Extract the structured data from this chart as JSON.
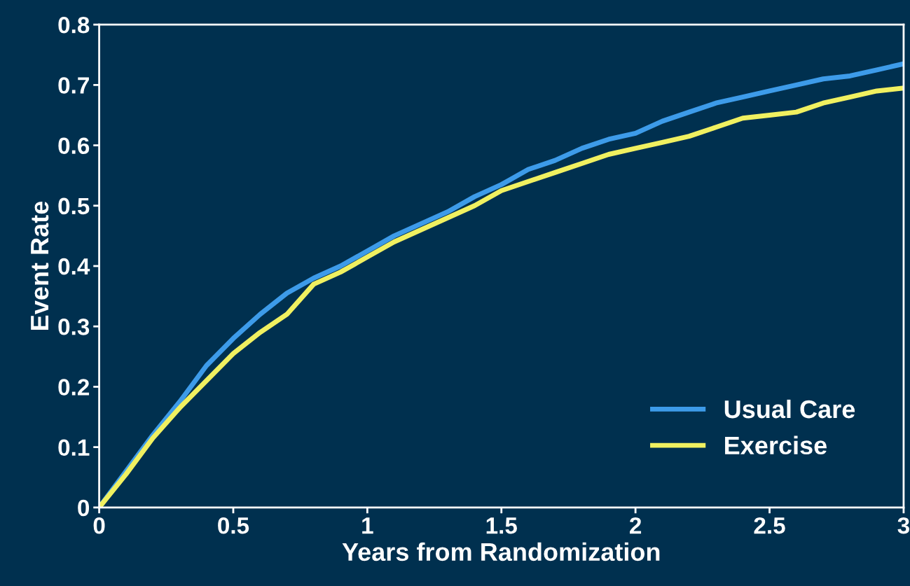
{
  "chart_data": {
    "type": "line",
    "xlabel": "Years from Randomization",
    "ylabel": "Event Rate",
    "x": [
      0,
      0.1,
      0.2,
      0.3,
      0.4,
      0.5,
      0.6,
      0.7,
      0.8,
      0.9,
      1.0,
      1.1,
      1.2,
      1.3,
      1.4,
      1.5,
      1.6,
      1.7,
      1.8,
      1.9,
      2.0,
      2.1,
      2.2,
      2.3,
      2.4,
      2.5,
      2.6,
      2.7,
      2.8,
      2.9,
      3.0
    ],
    "series": [
      {
        "name": "Usual Care",
        "color": "#3d9be9",
        "values": [
          0,
          0.06,
          0.12,
          0.175,
          0.235,
          0.28,
          0.32,
          0.355,
          0.38,
          0.4,
          0.425,
          0.45,
          0.47,
          0.49,
          0.515,
          0.535,
          0.56,
          0.575,
          0.595,
          0.61,
          0.62,
          0.64,
          0.655,
          0.67,
          0.68,
          0.69,
          0.7,
          0.71,
          0.715,
          0.725,
          0.735
        ]
      },
      {
        "name": "Exercise",
        "color": "#f0f060",
        "values": [
          0,
          0.055,
          0.115,
          0.165,
          0.21,
          0.255,
          0.29,
          0.32,
          0.37,
          0.39,
          0.415,
          0.44,
          0.46,
          0.48,
          0.5,
          0.525,
          0.54,
          0.555,
          0.57,
          0.585,
          0.595,
          0.605,
          0.615,
          0.63,
          0.645,
          0.65,
          0.655,
          0.67,
          0.68,
          0.69,
          0.695
        ]
      }
    ],
    "xlim": [
      0,
      3
    ],
    "xticks": [
      0,
      0.5,
      1,
      1.5,
      2,
      2.5,
      3
    ],
    "ylim": [
      0,
      0.8
    ],
    "yticks": [
      0,
      0.1,
      0.2,
      0.3,
      0.4,
      0.5,
      0.6,
      0.7,
      0.8
    ],
    "grid": false,
    "legend": "bottom right",
    "marker": "none",
    "line_style": "solid"
  }
}
